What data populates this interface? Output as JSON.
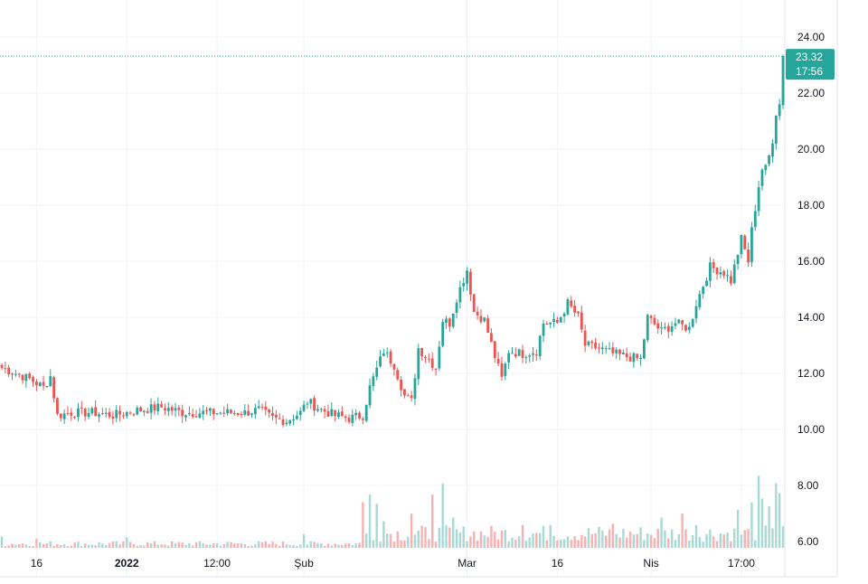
{
  "chart_data": {
    "type": "candlestick",
    "title": "",
    "xlabel": "",
    "ylabel": "",
    "ylim": [
      6.0,
      24.5
    ],
    "y_ticks": [
      "24.00",
      "22.00",
      "20.00",
      "18.00",
      "16.00",
      "14.00",
      "12.00",
      "10.00",
      "8.00",
      "6.00"
    ],
    "x_ticks": [
      {
        "label": "16",
        "index": 10,
        "year": false
      },
      {
        "label": "2022",
        "index": 36,
        "year": true
      },
      {
        "label": "12:00",
        "index": 62,
        "year": false
      },
      {
        "label": "Şub",
        "index": 87,
        "year": false
      },
      {
        "label": "Mar",
        "index": 134,
        "year": false
      },
      {
        "label": "16",
        "index": 160,
        "year": false
      },
      {
        "label": "Nis",
        "index": 187,
        "year": false
      },
      {
        "label": "17:00",
        "index": 213,
        "year": false
      }
    ],
    "last_price": {
      "value": 23.32,
      "label": "23.32",
      "time": "17:56"
    },
    "grid": true,
    "colors": {
      "up": "#26a69a",
      "down": "#ef5350",
      "volume_up": "#a7dad5",
      "volume_down": "#f7b1b1",
      "badge": "#26a69a"
    },
    "price_path": [
      [
        0,
        12.2
      ],
      [
        4,
        12.0
      ],
      [
        8,
        11.8
      ],
      [
        12,
        11.5
      ],
      [
        14,
        11.9
      ],
      [
        16,
        10.5
      ],
      [
        20,
        10.6
      ],
      [
        26,
        10.6
      ],
      [
        32,
        10.5
      ],
      [
        36,
        10.6
      ],
      [
        40,
        10.7
      ],
      [
        46,
        10.8
      ],
      [
        52,
        10.6
      ],
      [
        58,
        10.6
      ],
      [
        64,
        10.6
      ],
      [
        70,
        10.6
      ],
      [
        74,
        10.7
      ],
      [
        78,
        10.4
      ],
      [
        82,
        10.3
      ],
      [
        86,
        10.6
      ],
      [
        88,
        11.0
      ],
      [
        92,
        10.7
      ],
      [
        96,
        10.5
      ],
      [
        100,
        10.4
      ],
      [
        104,
        10.5
      ],
      [
        106,
        11.5
      ],
      [
        110,
        12.8
      ],
      [
        113,
        12.3
      ],
      [
        116,
        11.2
      ],
      [
        118,
        11.0
      ],
      [
        120,
        12.9
      ],
      [
        123,
        12.5
      ],
      [
        125,
        12.2
      ],
      [
        127,
        13.9
      ],
      [
        129,
        13.8
      ],
      [
        131,
        14.7
      ],
      [
        134,
        15.7
      ],
      [
        136,
        14.2
      ],
      [
        139,
        13.9
      ],
      [
        142,
        12.6
      ],
      [
        144,
        11.8
      ],
      [
        146,
        12.8
      ],
      [
        150,
        12.7
      ],
      [
        154,
        12.8
      ],
      [
        156,
        13.8
      ],
      [
        160,
        13.8
      ],
      [
        163,
        14.5
      ],
      [
        166,
        14.0
      ],
      [
        168,
        13.0
      ],
      [
        172,
        12.9
      ],
      [
        176,
        12.7
      ],
      [
        180,
        12.6
      ],
      [
        184,
        12.5
      ],
      [
        186,
        14.0
      ],
      [
        190,
        13.5
      ],
      [
        194,
        13.8
      ],
      [
        198,
        13.6
      ],
      [
        200,
        14.5
      ],
      [
        204,
        15.8
      ],
      [
        208,
        15.6
      ],
      [
        210,
        15.3
      ],
      [
        213,
        16.8
      ],
      [
        215,
        16.0
      ],
      [
        216,
        17.1
      ],
      [
        218,
        18.7
      ],
      [
        219,
        19.3
      ],
      [
        220,
        19.3
      ],
      [
        222,
        20.2
      ],
      [
        223,
        21.2
      ],
      [
        224,
        21.6
      ],
      [
        225,
        23.32
      ]
    ],
    "volume_spikes": [
      [
        0,
        0.15
      ],
      [
        10,
        0.12
      ],
      [
        36,
        0.14
      ],
      [
        87,
        0.18
      ],
      [
        104,
        0.6
      ],
      [
        106,
        0.7
      ],
      [
        108,
        0.58
      ],
      [
        110,
        0.35
      ],
      [
        118,
        0.45
      ],
      [
        124,
        0.7
      ],
      [
        127,
        0.85
      ],
      [
        130,
        0.4
      ],
      [
        150,
        0.3
      ],
      [
        158,
        0.3
      ],
      [
        176,
        0.32
      ],
      [
        190,
        0.4
      ],
      [
        196,
        0.45
      ],
      [
        200,
        0.3
      ],
      [
        212,
        0.5
      ],
      [
        216,
        0.6
      ],
      [
        218,
        0.95
      ],
      [
        219,
        0.65
      ],
      [
        221,
        0.55
      ],
      [
        223,
        0.85
      ],
      [
        224,
        0.72
      ]
    ]
  }
}
